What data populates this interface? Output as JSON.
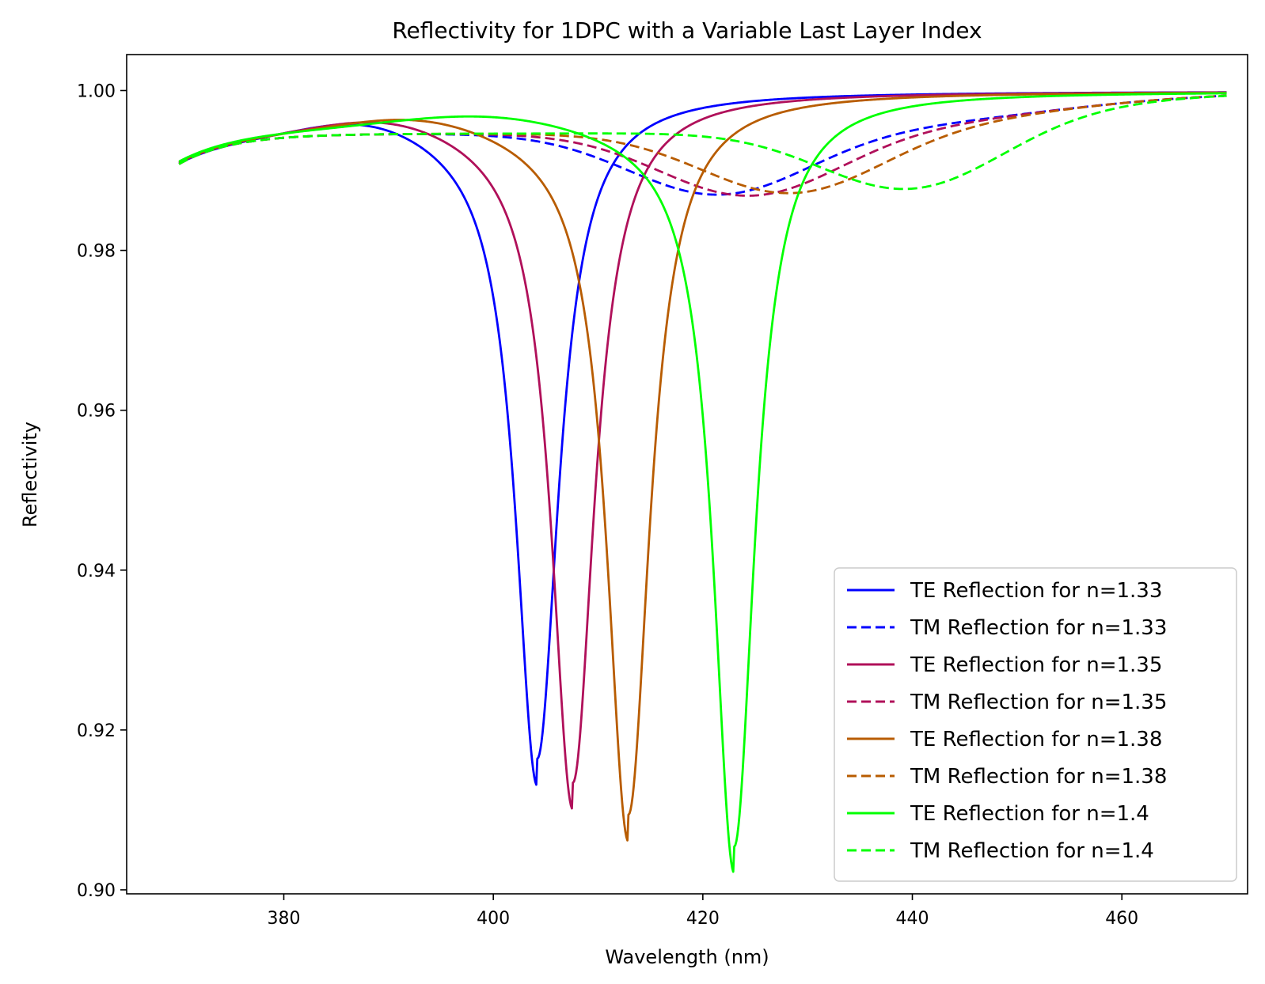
{
  "chart_data": {
    "type": "line",
    "title": "Reflectivity for 1DPC with a Variable Last Layer Index",
    "xlabel": "Wavelength (nm)",
    "ylabel": "Reflectivity",
    "xlim": [
      365,
      472
    ],
    "ylim": [
      0.8995,
      1.0045
    ],
    "xticks": [
      380,
      400,
      420,
      440,
      460
    ],
    "yticks": [
      0.9,
      0.92,
      0.94,
      0.96,
      0.98,
      1.0
    ],
    "xtick_labels": [
      "380",
      "400",
      "420",
      "440",
      "460"
    ],
    "ytick_labels": [
      "0.90",
      "0.92",
      "0.94",
      "0.96",
      "0.98",
      "1.00"
    ],
    "grid": false,
    "legend_position": "lower-right",
    "x_range": [
      370,
      470
    ],
    "series": [
      {
        "name": "TE Reflection for n=1.33",
        "label": "TE Reflection for n=1.33",
        "color": "#0000ff",
        "dash": "solid",
        "model": {
          "kind": "te",
          "center": 404.2,
          "depth": 0.0825,
          "width": 2.5,
          "slope": 5.5e-05,
          "bx0": 388,
          "sat": 8
        }
      },
      {
        "name": "TM Reflection for n=1.33",
        "label": "TM Reflection for n=1.33",
        "color": "#0000ff",
        "dash": "dashed",
        "model": {
          "kind": "tm",
          "center": 421.5,
          "depth": 0.0078,
          "width": 12
        }
      },
      {
        "name": "TE Reflection for n=1.35",
        "label": "TE Reflection for n=1.35",
        "color": "#b0105a",
        "dash": "solid",
        "model": {
          "kind": "te",
          "center": 407.6,
          "depth": 0.0855,
          "width": 2.5,
          "slope": 5.5e-05,
          "bx0": 390,
          "sat": 9
        }
      },
      {
        "name": "TM Reflection for n=1.35",
        "label": "TM Reflection for n=1.35",
        "color": "#b0105a",
        "dash": "dashed",
        "model": {
          "kind": "tm",
          "center": 424.5,
          "depth": 0.008,
          "width": 12
        }
      },
      {
        "name": "TE Reflection for n=1.38",
        "label": "TE Reflection for n=1.38",
        "color": "#b85c00",
        "dash": "solid",
        "model": {
          "kind": "te",
          "center": 412.9,
          "depth": 0.0895,
          "width": 2.5,
          "slope": 5.5e-05,
          "bx0": 393,
          "sat": 10
        }
      },
      {
        "name": "TM Reflection for n=1.38",
        "label": "TM Reflection for n=1.38",
        "color": "#b85c00",
        "dash": "dashed",
        "model": {
          "kind": "tm",
          "center": 428.5,
          "depth": 0.0078,
          "width": 12
        }
      },
      {
        "name": "TE Reflection for n=1.4",
        "label": "TE Reflection for n=1.4",
        "color": "#00ff00",
        "dash": "solid",
        "model": {
          "kind": "te",
          "center": 423.0,
          "depth": 0.0935,
          "width": 2.4,
          "slope": 5.5e-05,
          "bx0": 400,
          "sat": 13
        }
      },
      {
        "name": "TM Reflection for n=1.4",
        "label": "TM Reflection for n=1.4",
        "color": "#00ff00",
        "dash": "dashed",
        "model": {
          "kind": "tm",
          "center": 440.0,
          "depth": 0.008,
          "width": 12
        }
      }
    ],
    "minima_approx": [
      {
        "series": "TE Reflection for n=1.33",
        "x": 404.2,
        "y": 0.915
      },
      {
        "series": "TE Reflection for n=1.35",
        "x": 407.6,
        "y": 0.912
      },
      {
        "series": "TE Reflection for n=1.38",
        "x": 412.9,
        "y": 0.908
      },
      {
        "series": "TE Reflection for n=1.4",
        "x": 423.0,
        "y": 0.9045
      },
      {
        "series": "TM Reflection for n=1.33",
        "x": 421.5,
        "y": 0.9887
      },
      {
        "series": "TM Reflection for n=1.35",
        "x": 424.5,
        "y": 0.9888
      },
      {
        "series": "TM Reflection for n=1.38",
        "x": 428.5,
        "y": 0.9893
      },
      {
        "series": "TM Reflection for n=1.4",
        "x": 440.0,
        "y": 0.9899
      }
    ]
  }
}
